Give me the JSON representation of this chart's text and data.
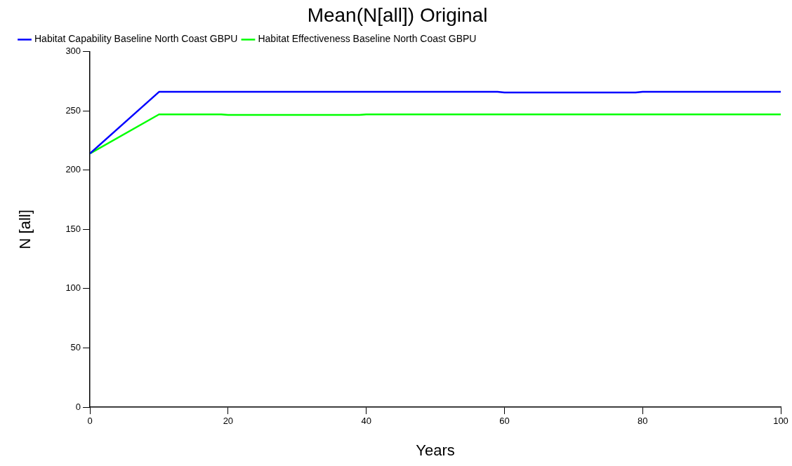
{
  "chart_data": {
    "type": "line",
    "title": "Mean(N[all]) Original",
    "xlabel": "Years",
    "ylabel": "N [all]",
    "xlim": [
      0,
      100
    ],
    "xticks": [
      0,
      20,
      40,
      60,
      80,
      100
    ],
    "ylim": [
      0,
      300
    ],
    "yticks": [
      0,
      50,
      100,
      150,
      200,
      250,
      300
    ],
    "grid": false,
    "legend": "top left",
    "marker": "none",
    "line_style": "solid",
    "series": [
      {
        "name": "Habitat Capability Baseline North Coast GBPU",
        "color": "#0000ff",
        "x": [
          0,
          10,
          59,
          60,
          79,
          80,
          100
        ],
        "values": [
          214,
          266,
          266,
          265.5,
          265.5,
          266,
          266
        ]
      },
      {
        "name": "Habitat Effectiveness Baseline North Coast GBPU",
        "color": "#00ff00",
        "x": [
          0,
          10,
          19,
          20,
          39,
          40,
          100
        ],
        "values": [
          214,
          247,
          247,
          246.5,
          246.5,
          247,
          247
        ]
      }
    ]
  }
}
